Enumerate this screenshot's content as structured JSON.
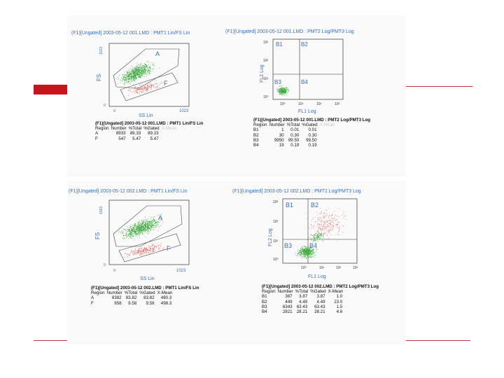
{
  "colors": {
    "accent": "#c4161c",
    "label_blue": "#3a6db5",
    "green_dots": "#3faa3f",
    "red_dots": "#e05050"
  },
  "chart_data": [
    {
      "type": "scatter",
      "title": "(F1)[Ungated] 2003-05-12 001.LMD : PMT1 Lin/FS Lin",
      "xlabel": "SS Lin",
      "ylabel": "FS",
      "xticks": [
        "0",
        "1023"
      ],
      "yticks": [
        "0",
        "1023"
      ],
      "regions": [
        "A",
        "F"
      ],
      "table": {
        "title": "(F1)[Ungated] 2003-05-12 001.LMD : PMT1 Lin/FS Lin",
        "columns": [
          "Region",
          "Number",
          "%Total",
          "%Gated",
          "X-Mean"
        ],
        "rows": [
          [
            "A",
            "8933",
            "89.33",
            "89.33",
            ""
          ],
          [
            "F",
            "547",
            "5.47",
            "5.47",
            ""
          ]
        ]
      }
    },
    {
      "type": "scatter",
      "title": "(F1)[Ungated] 2003-05-12 001.LMD : PMT2 Log/PMT3 Log",
      "xlabel": "FL1 Log",
      "ylabel": "FL2 Log",
      "scale": "log",
      "xticks": [
        "10⁰",
        "10¹",
        "10²",
        "10³"
      ],
      "yticks": [
        "10⁰",
        "10¹",
        "10²",
        "10³"
      ],
      "quadrants": [
        "B1",
        "B2",
        "B3",
        "B4"
      ],
      "table": {
        "title": "(F1)[Ungated] 2003-05-12 001.LMD : PMT2 Log/PMT3 Log",
        "columns": [
          "Region",
          "Number",
          "%Total",
          "%Gated",
          "X-Mean"
        ],
        "rows": [
          [
            "B1",
            "1",
            "0.01",
            "0.01",
            ""
          ],
          [
            "B2",
            "30",
            "0.30",
            "0.30",
            ""
          ],
          [
            "B3",
            "9950",
            "99.50",
            "99.50",
            ""
          ],
          [
            "B4",
            "19",
            "0.19",
            "0.19",
            ""
          ]
        ]
      }
    },
    {
      "type": "scatter",
      "title": "(F1)[Ungated] 2003-05-12 002.LMD : PMT1 Lin/FS Lin",
      "xlabel": "SS Lin",
      "ylabel": "FS",
      "xticks": [
        "0",
        "1023"
      ],
      "yticks": [
        "0",
        "1023"
      ],
      "regions": [
        "A",
        "F"
      ],
      "table": {
        "title": "(F1)[Ungated] 2003-05-12 002.LMD : PMT1 Lin/FS Lin",
        "columns": [
          "Region",
          "Number",
          "%Total",
          "%Gated",
          "X-Mean"
        ],
        "rows": [
          [
            "A",
            "8382",
            "83.82",
            "83.82",
            "480.3"
          ],
          [
            "F",
            "958",
            "9.58",
            "9.58",
            "498.3"
          ]
        ]
      }
    },
    {
      "type": "scatter",
      "title": "(F1)[Ungated] 2003-05-12 002.LMD : PMT2 Log/PMT3 Log",
      "xlabel": "FL1 Log",
      "ylabel": "FL2 Log",
      "scale": "log",
      "xticks": [
        "10⁰",
        "10¹",
        "10²",
        "10³"
      ],
      "yticks": [
        "10⁰",
        "10¹",
        "10²",
        "10³"
      ],
      "quadrants": [
        "B1",
        "B2",
        "B3",
        "B4"
      ],
      "table": {
        "title": "(F1)[Ungated] 2003-05-12 002.LMD : PMT2 Log/PMT3 Log",
        "columns": [
          "Region",
          "Number",
          "%Total",
          "%Gated",
          "X-Mean"
        ],
        "rows": [
          [
            "B1",
            "387",
            "3.87",
            "3.87",
            "1.0"
          ],
          [
            "B2",
            "449",
            "4.49",
            "4.49",
            "23.0"
          ],
          [
            "B3",
            "6343",
            "63.43",
            "63.43",
            "1.5"
          ],
          [
            "B4",
            "2821",
            "28.21",
            "28.21",
            "4.6"
          ]
        ]
      }
    }
  ]
}
